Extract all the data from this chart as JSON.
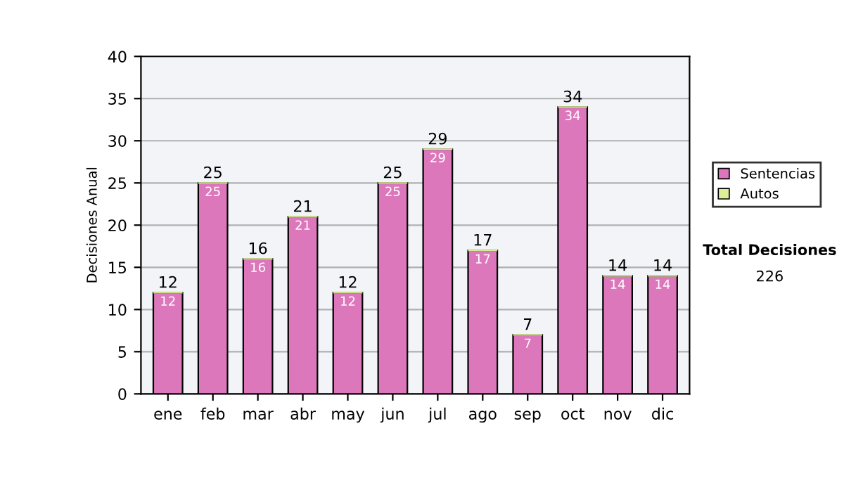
{
  "chart_data": {
    "type": "bar",
    "ylabel": "Decisiones Anual",
    "categories": [
      "ene",
      "feb",
      "mar",
      "abr",
      "may",
      "jun",
      "jul",
      "ago",
      "sep",
      "oct",
      "nov",
      "dic"
    ],
    "stacked": true,
    "series": [
      {
        "name": "Sentencias",
        "color": "#dd77bb",
        "values": [
          12,
          25,
          16,
          21,
          12,
          25,
          29,
          17,
          7,
          34,
          14,
          14
        ],
        "value_labels": [
          "12",
          "25",
          "16",
          "21",
          "12",
          "25",
          "29",
          "17",
          "7",
          "34",
          "14",
          "14"
        ]
      },
      {
        "name": "Autos",
        "color": "#ddee99",
        "values": [
          0,
          0,
          0,
          0,
          0,
          0,
          0,
          0,
          0,
          0,
          0,
          0
        ]
      }
    ],
    "totals": [
      "12",
      "25",
      "16",
      "21",
      "12",
      "25",
      "29",
      "17",
      "7",
      "34",
      "14",
      "14"
    ],
    "ylim": [
      0,
      40
    ],
    "yticks": [
      0,
      5,
      10,
      15,
      20,
      25,
      30,
      35,
      40
    ],
    "grid": "y",
    "legend": "right",
    "annotations": [
      "Total Decisiones",
      "226"
    ]
  }
}
